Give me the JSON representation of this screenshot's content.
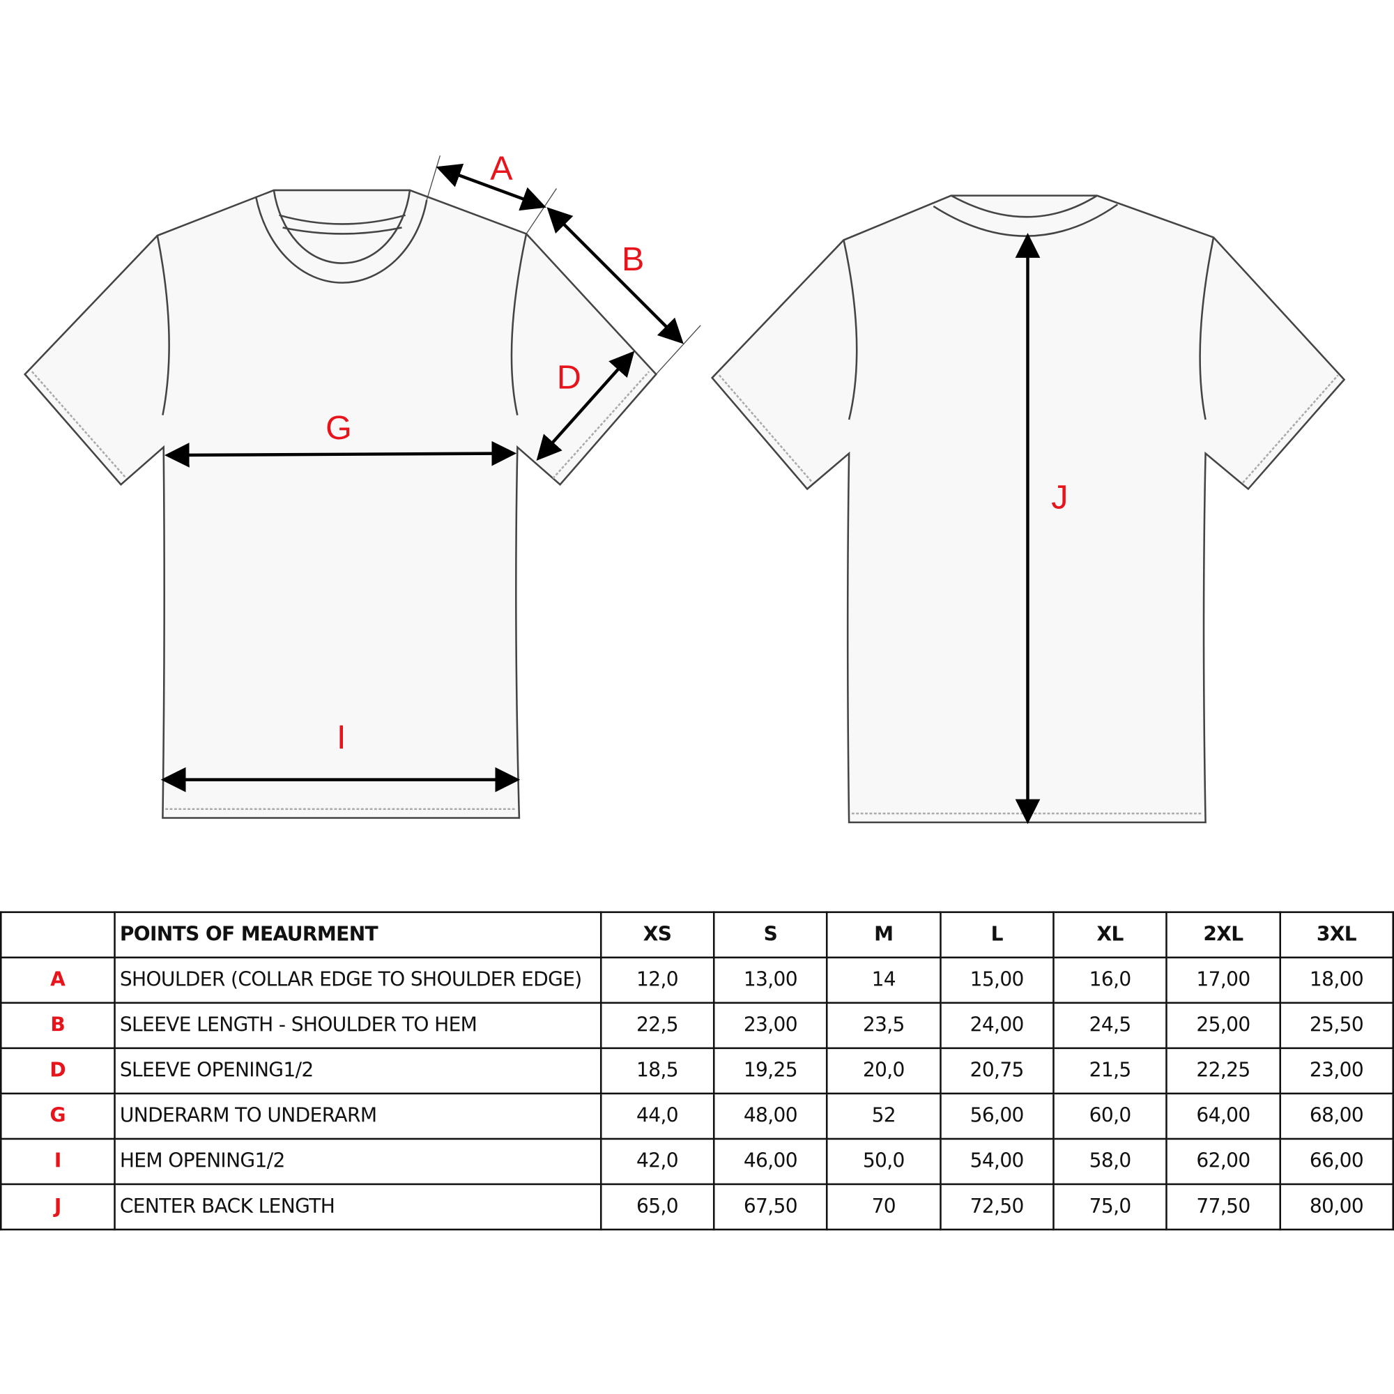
{
  "diagram": {
    "labels": {
      "A": "A",
      "B": "B",
      "D": "D",
      "G": "G",
      "I": "I",
      "J": "J"
    },
    "colors": {
      "label": "#e8141c",
      "outline": "#444444",
      "fill": "#f8f8f8",
      "arrow": "#000000"
    }
  },
  "table": {
    "header": {
      "code": "",
      "title": "POINTS OF MEAURMENT",
      "sizes": [
        "XS",
        "S",
        "M",
        "L",
        "XL",
        "2XL",
        "3XL"
      ]
    },
    "rows": [
      {
        "code": "A",
        "desc": "SHOULDER (COLLAR EDGE TO SHOULDER EDGE)",
        "values": [
          "12,0",
          "13,00",
          "14",
          "15,00",
          "16,0",
          "17,00",
          "18,00"
        ]
      },
      {
        "code": "B",
        "desc": "SLEEVE LENGTH - SHOULDER TO HEM",
        "values": [
          "22,5",
          "23,00",
          "23,5",
          "24,00",
          "24,5",
          "25,00",
          "25,50"
        ]
      },
      {
        "code": "D",
        "desc": "SLEEVE OPENING1/2",
        "values": [
          "18,5",
          "19,25",
          "20,0",
          "20,75",
          "21,5",
          "22,25",
          "23,00"
        ]
      },
      {
        "code": "G",
        "desc": "UNDERARM TO UNDERARM",
        "values": [
          "44,0",
          "48,00",
          "52",
          "56,00",
          "60,0",
          "64,00",
          "68,00"
        ]
      },
      {
        "code": "I",
        "desc": "HEM OPENING1/2",
        "values": [
          "42,0",
          "46,00",
          "50,0",
          "54,00",
          "58,0",
          "62,00",
          "66,00"
        ]
      },
      {
        "code": "J",
        "desc": "CENTER BACK LENGTH",
        "values": [
          "65,0",
          "67,50",
          "70",
          "72,50",
          "75,0",
          "77,50",
          "80,00"
        ]
      }
    ]
  }
}
